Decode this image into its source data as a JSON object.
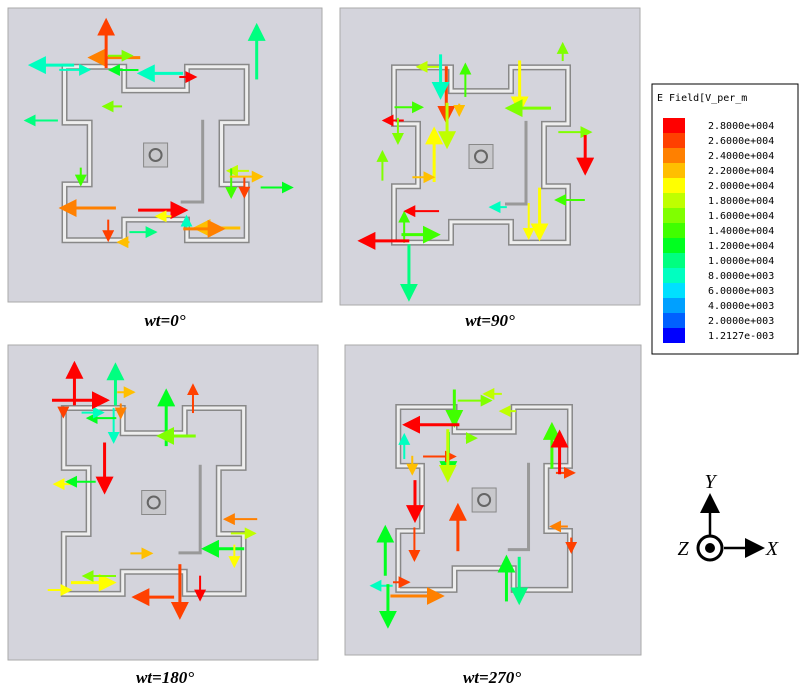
{
  "panels": [
    {
      "caption": "wt=0°"
    },
    {
      "caption": "wt=90°"
    },
    {
      "caption": "wt=180°"
    },
    {
      "caption": "wt=270°"
    }
  ],
  "legend": {
    "title": "E Field[V_per_m",
    "items": [
      {
        "label": "2.8000e+004",
        "color": "#ff0000"
      },
      {
        "label": "2.6000e+004",
        "color": "#ff4000"
      },
      {
        "label": "2.4000e+004",
        "color": "#ff8000"
      },
      {
        "label": "2.2000e+004",
        "color": "#ffbf00"
      },
      {
        "label": "2.0000e+004",
        "color": "#ffff00"
      },
      {
        "label": "1.8000e+004",
        "color": "#bfff00"
      },
      {
        "label": "1.6000e+004",
        "color": "#80ff00"
      },
      {
        "label": "1.4000e+004",
        "color": "#40ff00"
      },
      {
        "label": "1.2000e+004",
        "color": "#00ff20"
      },
      {
        "label": "1.0000e+004",
        "color": "#00ff80"
      },
      {
        "label": "8.0000e+003",
        "color": "#00ffc0"
      },
      {
        "label": "6.0000e+003",
        "color": "#00e0ff"
      },
      {
        "label": "4.0000e+003",
        "color": "#00a0ff"
      },
      {
        "label": "2.0000e+003",
        "color": "#0060ff"
      },
      {
        "label": "1.2127e-003",
        "color": "#0000ff"
      }
    ]
  },
  "axes": {
    "y": "Y",
    "z": "Z",
    "x": "X"
  }
}
